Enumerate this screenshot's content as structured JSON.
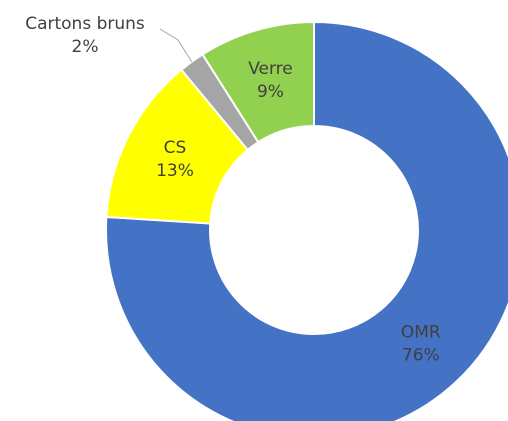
{
  "chart_data": {
    "type": "donut",
    "categories": [
      "OMR",
      "CS",
      "Cartons bruns",
      "Verre"
    ],
    "values": [
      76,
      13,
      2,
      9
    ],
    "value_labels": [
      "76%",
      "13%",
      "2%",
      "9%"
    ],
    "colors": [
      "#4472c4",
      "#ffff00",
      "#a5a5a5",
      "#92d050"
    ]
  }
}
